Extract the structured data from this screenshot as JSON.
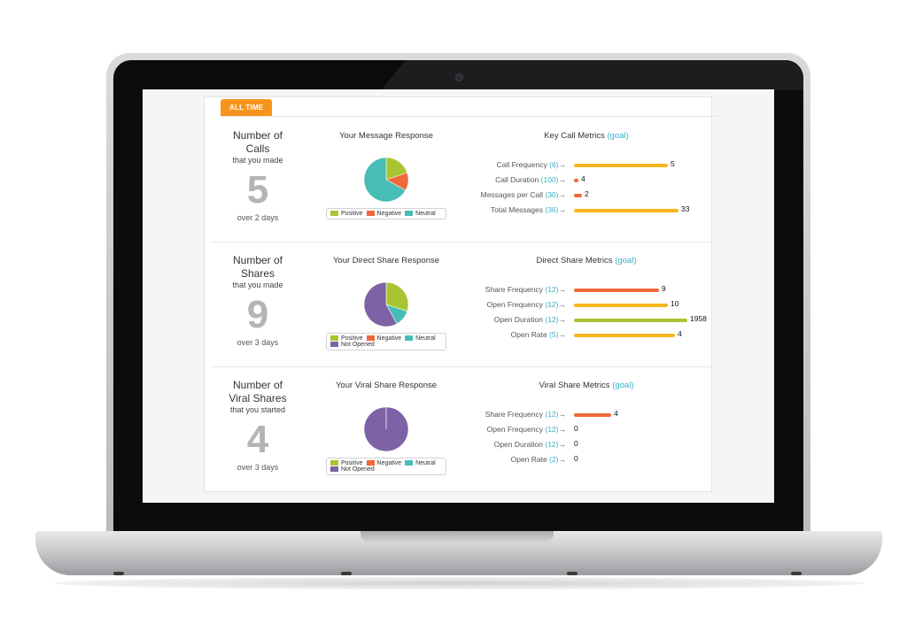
{
  "header": {
    "tab_label": "ALL TIME"
  },
  "colors": {
    "positive": "#a8c531",
    "negative": "#f0673a",
    "neutral": "#48bdb5",
    "not_opened": "#7d62a6",
    "bar_gold": "#f6b61c",
    "bar_orange": "#f0673a",
    "bar_green": "#a8c531",
    "goal": "#3ab0c5",
    "tab": "#f7941d"
  },
  "sections": [
    {
      "count": {
        "title_line1": "Number of",
        "title_line2": "Calls",
        "subtitle": "that you made",
        "value": "5",
        "span": "over 2 days"
      },
      "pie": {
        "title": "Your Message Response",
        "slices": [
          {
            "label": "Positive",
            "value": 0.2
          },
          {
            "label": "Negative",
            "value": 0.13
          },
          {
            "label": "Neutral",
            "value": 0.67
          }
        ],
        "legend": [
          "Positive",
          "Negative",
          "Neutral"
        ]
      },
      "metrics": {
        "title": "Key Call Metrics",
        "goal_link": "(goal)",
        "rows": [
          {
            "label": "Call Frequency",
            "goal": "(6)",
            "arrow": "→",
            "value": "5",
            "fraction": 0.83,
            "color": "#f6b61c"
          },
          {
            "label": "Call Duration",
            "goal": "(100)",
            "arrow": "→",
            "value": "4",
            "fraction": 0.04,
            "color": "#f0673a"
          },
          {
            "label": "Messages per Call",
            "goal": "(30)",
            "arrow": "→",
            "value": "2",
            "fraction": 0.07,
            "color": "#f0673a"
          },
          {
            "label": "Total Messages",
            "goal": "(36)",
            "arrow": "→",
            "value": "33",
            "fraction": 0.92,
            "color": "#f6b61c"
          }
        ]
      }
    },
    {
      "count": {
        "title_line1": "Number of",
        "title_line2": "Shares",
        "subtitle": "that you made",
        "value": "9",
        "span": "over 3 days"
      },
      "pie": {
        "title": "Your Direct Share Response",
        "slices": [
          {
            "label": "Positive",
            "value": 0.3
          },
          {
            "label": "Negative",
            "value": 0.0
          },
          {
            "label": "Neutral",
            "value": 0.12
          },
          {
            "label": "Not Opened",
            "value": 0.58
          }
        ],
        "legend": [
          "Positive",
          "Negative",
          "Neutral",
          "Not Opened"
        ]
      },
      "metrics": {
        "title": "Direct Share Metrics",
        "goal_link": "(goal)",
        "rows": [
          {
            "label": "Share Frequency",
            "goal": "(12)",
            "arrow": "→",
            "value": "9",
            "fraction": 0.75,
            "color": "#f0673a"
          },
          {
            "label": "Open Frequency",
            "goal": "(12)",
            "arrow": "→",
            "value": "10",
            "fraction": 0.83,
            "color": "#f6b61c"
          },
          {
            "label": "Open Duration",
            "goal": "(12)",
            "arrow": "→",
            "value": "1958",
            "fraction": 1.0,
            "color": "#a8c531"
          },
          {
            "label": "Open Rate",
            "goal": "(5)",
            "arrow": "→",
            "value": "4",
            "fraction": 0.89,
            "color": "#f6b61c"
          }
        ]
      }
    },
    {
      "count": {
        "title_line1": "Number of",
        "title_line2": "Viral Shares",
        "subtitle": "that you started",
        "value": "4",
        "span": "over 3 days"
      },
      "pie": {
        "title": "Your Viral Share Response",
        "slices": [
          {
            "label": "Positive",
            "value": 0.0
          },
          {
            "label": "Negative",
            "value": 0.0
          },
          {
            "label": "Neutral",
            "value": 0.0
          },
          {
            "label": "Not Opened",
            "value": 1.0
          }
        ],
        "legend": [
          "Positive",
          "Negative",
          "Neutral",
          "Not Opened"
        ]
      },
      "metrics": {
        "title": "Viral Share Metrics",
        "goal_link": "(goal)",
        "rows": [
          {
            "label": "Share Frequency",
            "goal": "(12)",
            "arrow": "→",
            "value": "4",
            "fraction": 0.33,
            "color": "#f0673a"
          },
          {
            "label": "Open Frequency",
            "goal": "(12)",
            "arrow": "→",
            "value": "0",
            "fraction": 0.0,
            "color": "#f6b61c"
          },
          {
            "label": "Open Duration",
            "goal": "(12)",
            "arrow": "→",
            "value": "0",
            "fraction": 0.0,
            "color": "#a8c531"
          },
          {
            "label": "Open Rate",
            "goal": "(2)",
            "arrow": "→",
            "value": "0",
            "fraction": 0.0,
            "color": "#f6b61c"
          }
        ]
      }
    }
  ]
}
